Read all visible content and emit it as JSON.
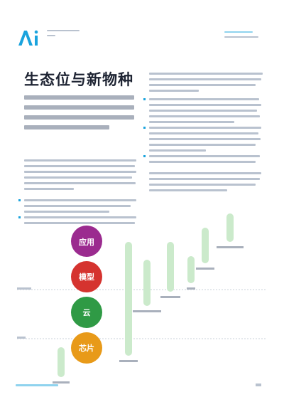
{
  "header": {
    "logo_text": "Ai"
  },
  "page": {
    "title": "生态位与新物种"
  },
  "chart": {
    "colors": {
      "layer_accent": "#7b2d8b",
      "layer_light": "#cfead0",
      "application": "#9b2b8f",
      "model": "#d5332f",
      "cloud": "#2f9a45",
      "chip": "#e89a19",
      "bar": "#cbeacb"
    },
    "layers": [
      {
        "label": "应用",
        "color_key": "application"
      },
      {
        "label": "模型",
        "color_key": "model"
      },
      {
        "label": "云",
        "color_key": "cloud"
      },
      {
        "label": "芯片",
        "color_key": "chip"
      }
    ]
  }
}
